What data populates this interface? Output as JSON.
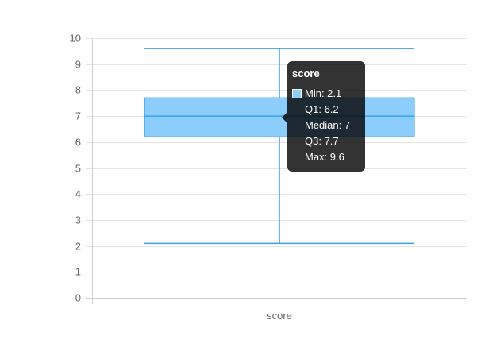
{
  "chart_data": {
    "type": "boxplot",
    "categories": [
      "score"
    ],
    "series": [
      {
        "name": "score",
        "min": 2.1,
        "q1": 6.2,
        "median": 7,
        "q3": 7.7,
        "max": 9.6
      }
    ],
    "ylim": [
      0,
      10
    ],
    "yticks": [
      "0",
      "1",
      "2",
      "3",
      "4",
      "5",
      "6",
      "7",
      "8",
      "9",
      "10"
    ],
    "grid": true,
    "colors": {
      "box_fill": "#8ccdfb",
      "box_stroke": "#36a2eb",
      "grid": "#e5e5e5"
    }
  },
  "tooltip": {
    "title": "score",
    "rows": [
      "Min: 2.1",
      "Q1: 6.2",
      "Median: 7",
      "Q3: 7.7",
      "Max: 9.6"
    ]
  }
}
